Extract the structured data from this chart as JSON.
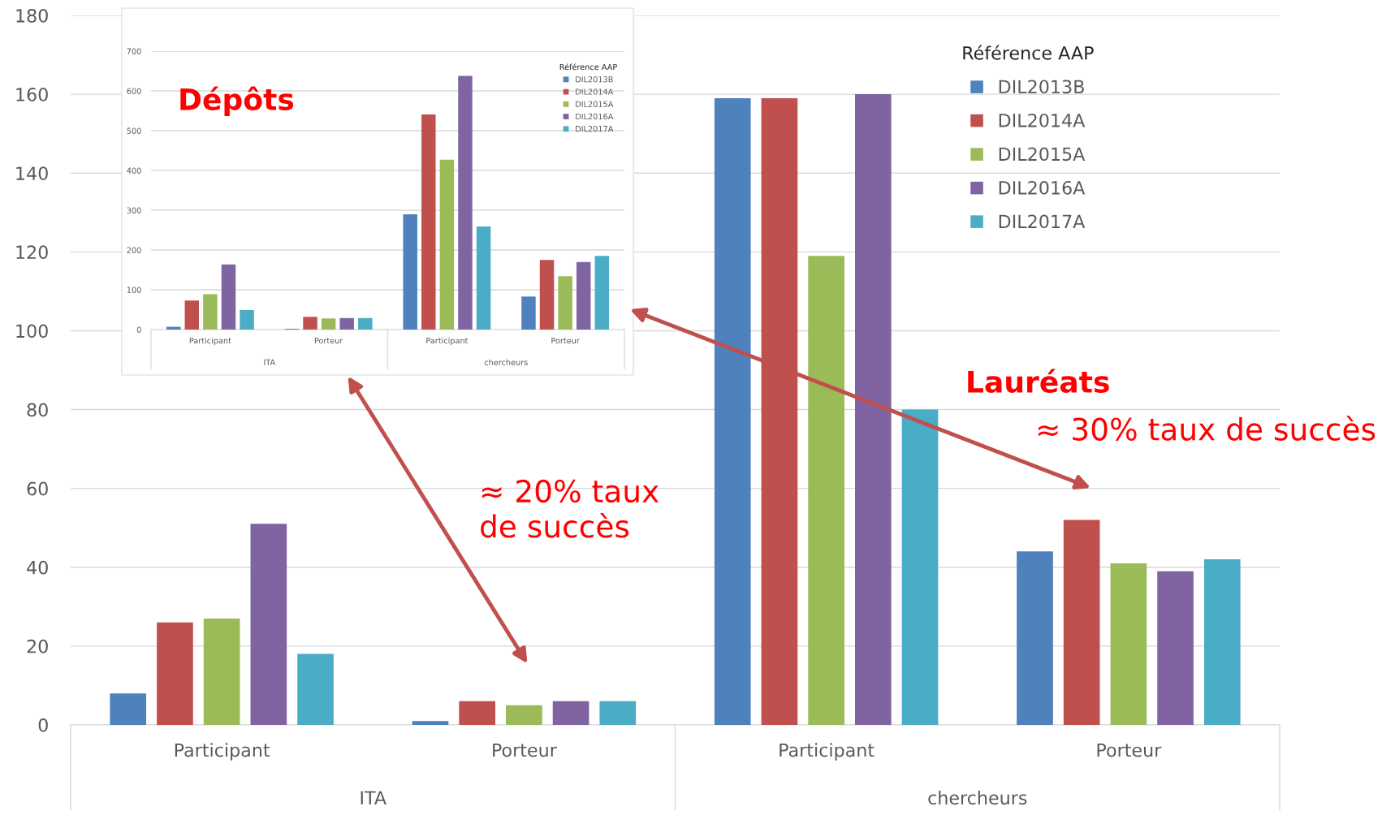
{
  "chart_data": [
    {
      "type": "bar",
      "title": "Lauréats",
      "legend_title": "Référence AAP",
      "categories": [
        "Participant",
        "Porteur",
        "Participant",
        "Porteur"
      ],
      "series": [
        {
          "name": "DIL2013B",
          "color": "#4f81bd",
          "values": [
            8,
            1,
            159,
            44
          ]
        },
        {
          "name": "DIL2014A",
          "color": "#c0504d",
          "values": [
            26,
            6,
            159,
            52
          ]
        },
        {
          "name": "DIL2015A",
          "color": "#9bbb59",
          "values": [
            27,
            5,
            119,
            41
          ]
        },
        {
          "name": "DIL2016A",
          "color": "#8064a2",
          "values": [
            51,
            6,
            160,
            39
          ]
        },
        {
          "name": "DIL2017A",
          "color": "#4bacc6",
          "values": [
            18,
            6,
            80,
            42
          ]
        }
      ],
      "ylim": [
        0,
        180
      ],
      "yticks": [
        0,
        20,
        40,
        60,
        80,
        100,
        120,
        140,
        160,
        180
      ],
      "grid": "y",
      "legend": "top right",
      "annotations": [
        "ITA",
        "chercheurs",
        "≈ 20% taux\nde succès",
        "≈ 30% taux de succès"
      ]
    },
    {
      "type": "bar",
      "title": "Dépôts",
      "legend_title": "Référence AAP",
      "categories": [
        "Participant",
        "Porteur",
        "Participant",
        "Porteur"
      ],
      "series": [
        {
          "name": "DIL2013B",
          "color": "#4f81bd",
          "values": [
            7,
            2,
            290,
            83
          ]
        },
        {
          "name": "DIL2014A",
          "color": "#c0504d",
          "values": [
            73,
            32,
            541,
            175
          ]
        },
        {
          "name": "DIL2015A",
          "color": "#9bbb59",
          "values": [
            89,
            28,
            427,
            134
          ]
        },
        {
          "name": "DIL2016A",
          "color": "#8064a2",
          "values": [
            164,
            29,
            638,
            170
          ]
        },
        {
          "name": "DIL2017A",
          "color": "#4bacc6",
          "values": [
            49,
            29,
            259,
            185
          ]
        }
      ],
      "ylim": [
        0,
        700
      ],
      "yticks": [
        0,
        100,
        200,
        300,
        400,
        500,
        600,
        700
      ],
      "grid": "y",
      "legend": "top right",
      "annotations": [
        "ITA",
        "chercheurs"
      ]
    }
  ]
}
